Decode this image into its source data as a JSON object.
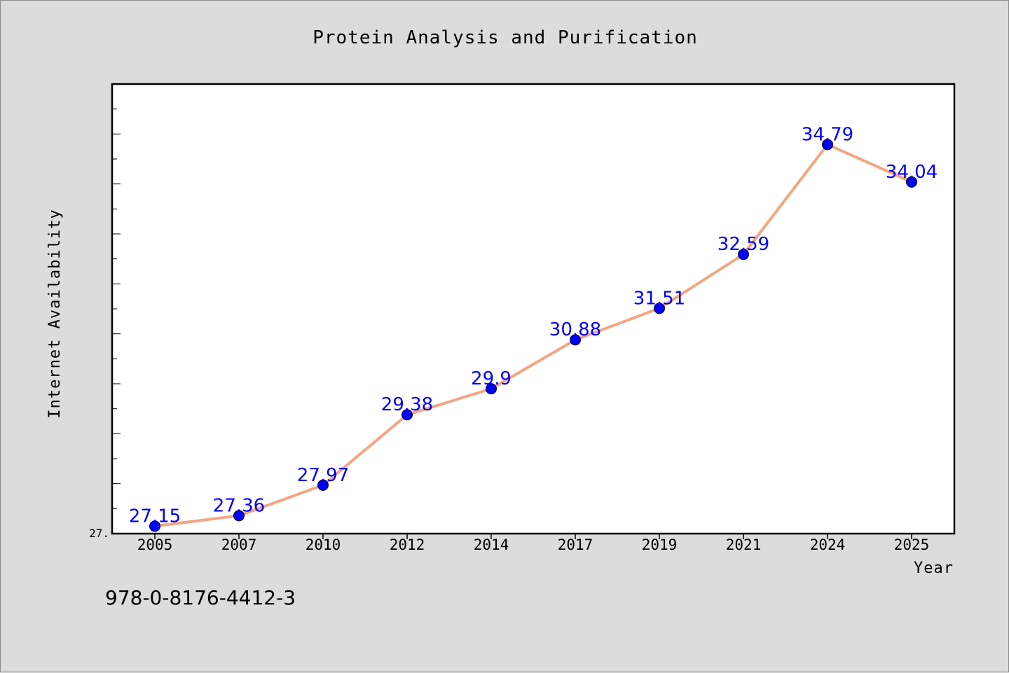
{
  "chart_data": {
    "type": "line",
    "title": "Protein Analysis and Purification",
    "xlabel": "Year",
    "ylabel": "Internet Availability",
    "categories": [
      "2005",
      "2007",
      "2010",
      "2012",
      "2014",
      "2017",
      "2019",
      "2021",
      "2024",
      "2025"
    ],
    "series": [
      {
        "values": [
          27.15,
          27.36,
          27.97,
          29.38,
          29.9,
          30.88,
          31.51,
          32.59,
          34.79,
          34.04
        ],
        "labels": [
          "27.15",
          "27.36",
          "27.97",
          "29.38",
          "29.9",
          "30.88",
          "31.51",
          "32.59",
          "34.79",
          "34.04"
        ],
        "line_color": "#f4a582",
        "marker_color": "#0000ff"
      }
    ],
    "ylim": [
      27.0,
      36.0
    ],
    "ytick_labels": [
      "27."
    ],
    "grid": false,
    "legend": "none"
  },
  "footer": {
    "isbn": "978-0-8176-4412-3"
  }
}
